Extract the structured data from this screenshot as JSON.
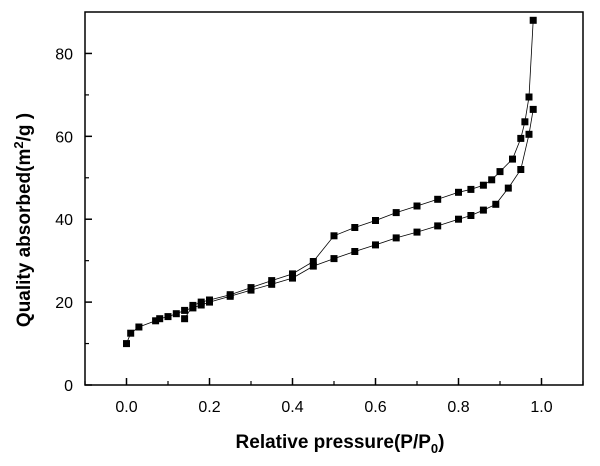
{
  "chart_data": {
    "type": "line",
    "xlabel": {
      "main": "Relative pressure(P/P",
      "subscript": "0",
      "suffix": ")"
    },
    "ylabel": {
      "main": "Quality absorbed(m",
      "superscript": "2",
      "suffix": "/g )"
    },
    "xlim": [
      -0.1,
      1.1
    ],
    "ylim": [
      0,
      90
    ],
    "xticks": [
      0.0,
      0.2,
      0.4,
      0.6,
      0.8,
      1.0
    ],
    "xtick_labels": [
      "0.0",
      "0.2",
      "0.4",
      "0.6",
      "0.8",
      "1.0"
    ],
    "yticks": [
      0,
      20,
      40,
      60,
      80
    ],
    "ytick_labels": [
      "0",
      "20",
      "40",
      "60",
      "80"
    ],
    "grid": false,
    "marker": "square",
    "color": "#000000",
    "series": [
      {
        "x": [
          0.0,
          0.01,
          0.03,
          0.07,
          0.08,
          0.1,
          0.12,
          0.14,
          0.16,
          0.18,
          0.2,
          0.25,
          0.3,
          0.35,
          0.4,
          0.45,
          0.5,
          0.55,
          0.6,
          0.65,
          0.7,
          0.75,
          0.8,
          0.83,
          0.86,
          0.89,
          0.92,
          0.95,
          0.97,
          0.98
        ],
        "y": [
          10.0,
          12.5,
          14.0,
          15.5,
          16.0,
          16.5,
          17.2,
          18.0,
          18.6,
          19.3,
          20.0,
          21.4,
          22.9,
          24.3,
          25.8,
          28.7,
          30.5,
          32.2,
          33.8,
          35.5,
          36.9,
          38.4,
          40.0,
          40.9,
          42.2,
          43.6,
          47.5,
          52.0,
          60.5,
          66.5
        ]
      },
      {
        "x": [
          0.98,
          0.97,
          0.96,
          0.95,
          0.93,
          0.9,
          0.88,
          0.86,
          0.83,
          0.8,
          0.75,
          0.7,
          0.65,
          0.6,
          0.55,
          0.5,
          0.45,
          0.4,
          0.35,
          0.3,
          0.25,
          0.2,
          0.18,
          0.16,
          0.14
        ],
        "y": [
          88.0,
          69.5,
          63.5,
          59.5,
          54.5,
          51.5,
          49.5,
          48.2,
          47.2,
          46.5,
          44.8,
          43.2,
          41.6,
          39.7,
          38.0,
          36.0,
          29.8,
          26.8,
          25.2,
          23.5,
          21.8,
          20.5,
          20.0,
          19.2,
          16.0
        ]
      }
    ]
  }
}
